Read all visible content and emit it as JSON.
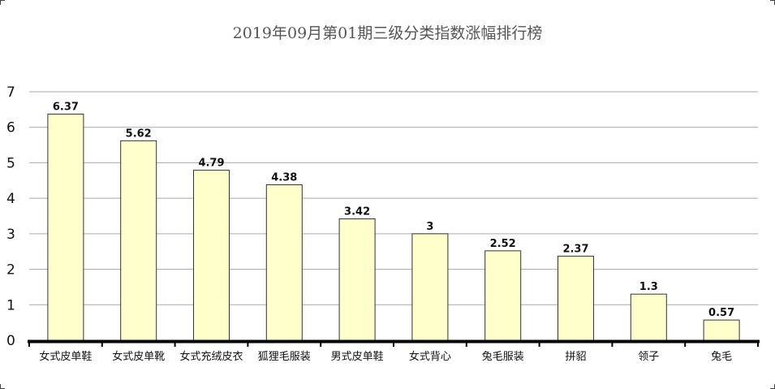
{
  "chart_data": {
    "type": "bar",
    "title": "2019年09月第01期三级分类指数涨幅排行榜",
    "xlabel": "",
    "ylabel": "",
    "categories": [
      "女式皮单鞋",
      "女式皮单靴",
      "女式充绒皮衣",
      "狐狸毛服装",
      "男式皮单鞋",
      "女式背心",
      "兔毛服装",
      "拼貂",
      "领子",
      "兔毛"
    ],
    "values": [
      6.37,
      5.62,
      4.79,
      4.38,
      3.42,
      3,
      2.52,
      2.37,
      1.3,
      0.57
    ],
    "data_labels": [
      "6.37",
      "5.62",
      "4.79",
      "4.38",
      "3.42",
      "3",
      "2.52",
      "2.37",
      "1.3",
      "0.57"
    ],
    "ylim": [
      0,
      7
    ],
    "yticks": [
      "0",
      "1",
      "2",
      "3",
      "4",
      "5",
      "6",
      "7"
    ],
    "grid": true,
    "legend": "none",
    "colors": {
      "bar_fill": "#ffffcc",
      "bar_stroke": "#333333",
      "grid": "#aaaaaa",
      "axis": "#000000",
      "title": "#555555"
    }
  }
}
